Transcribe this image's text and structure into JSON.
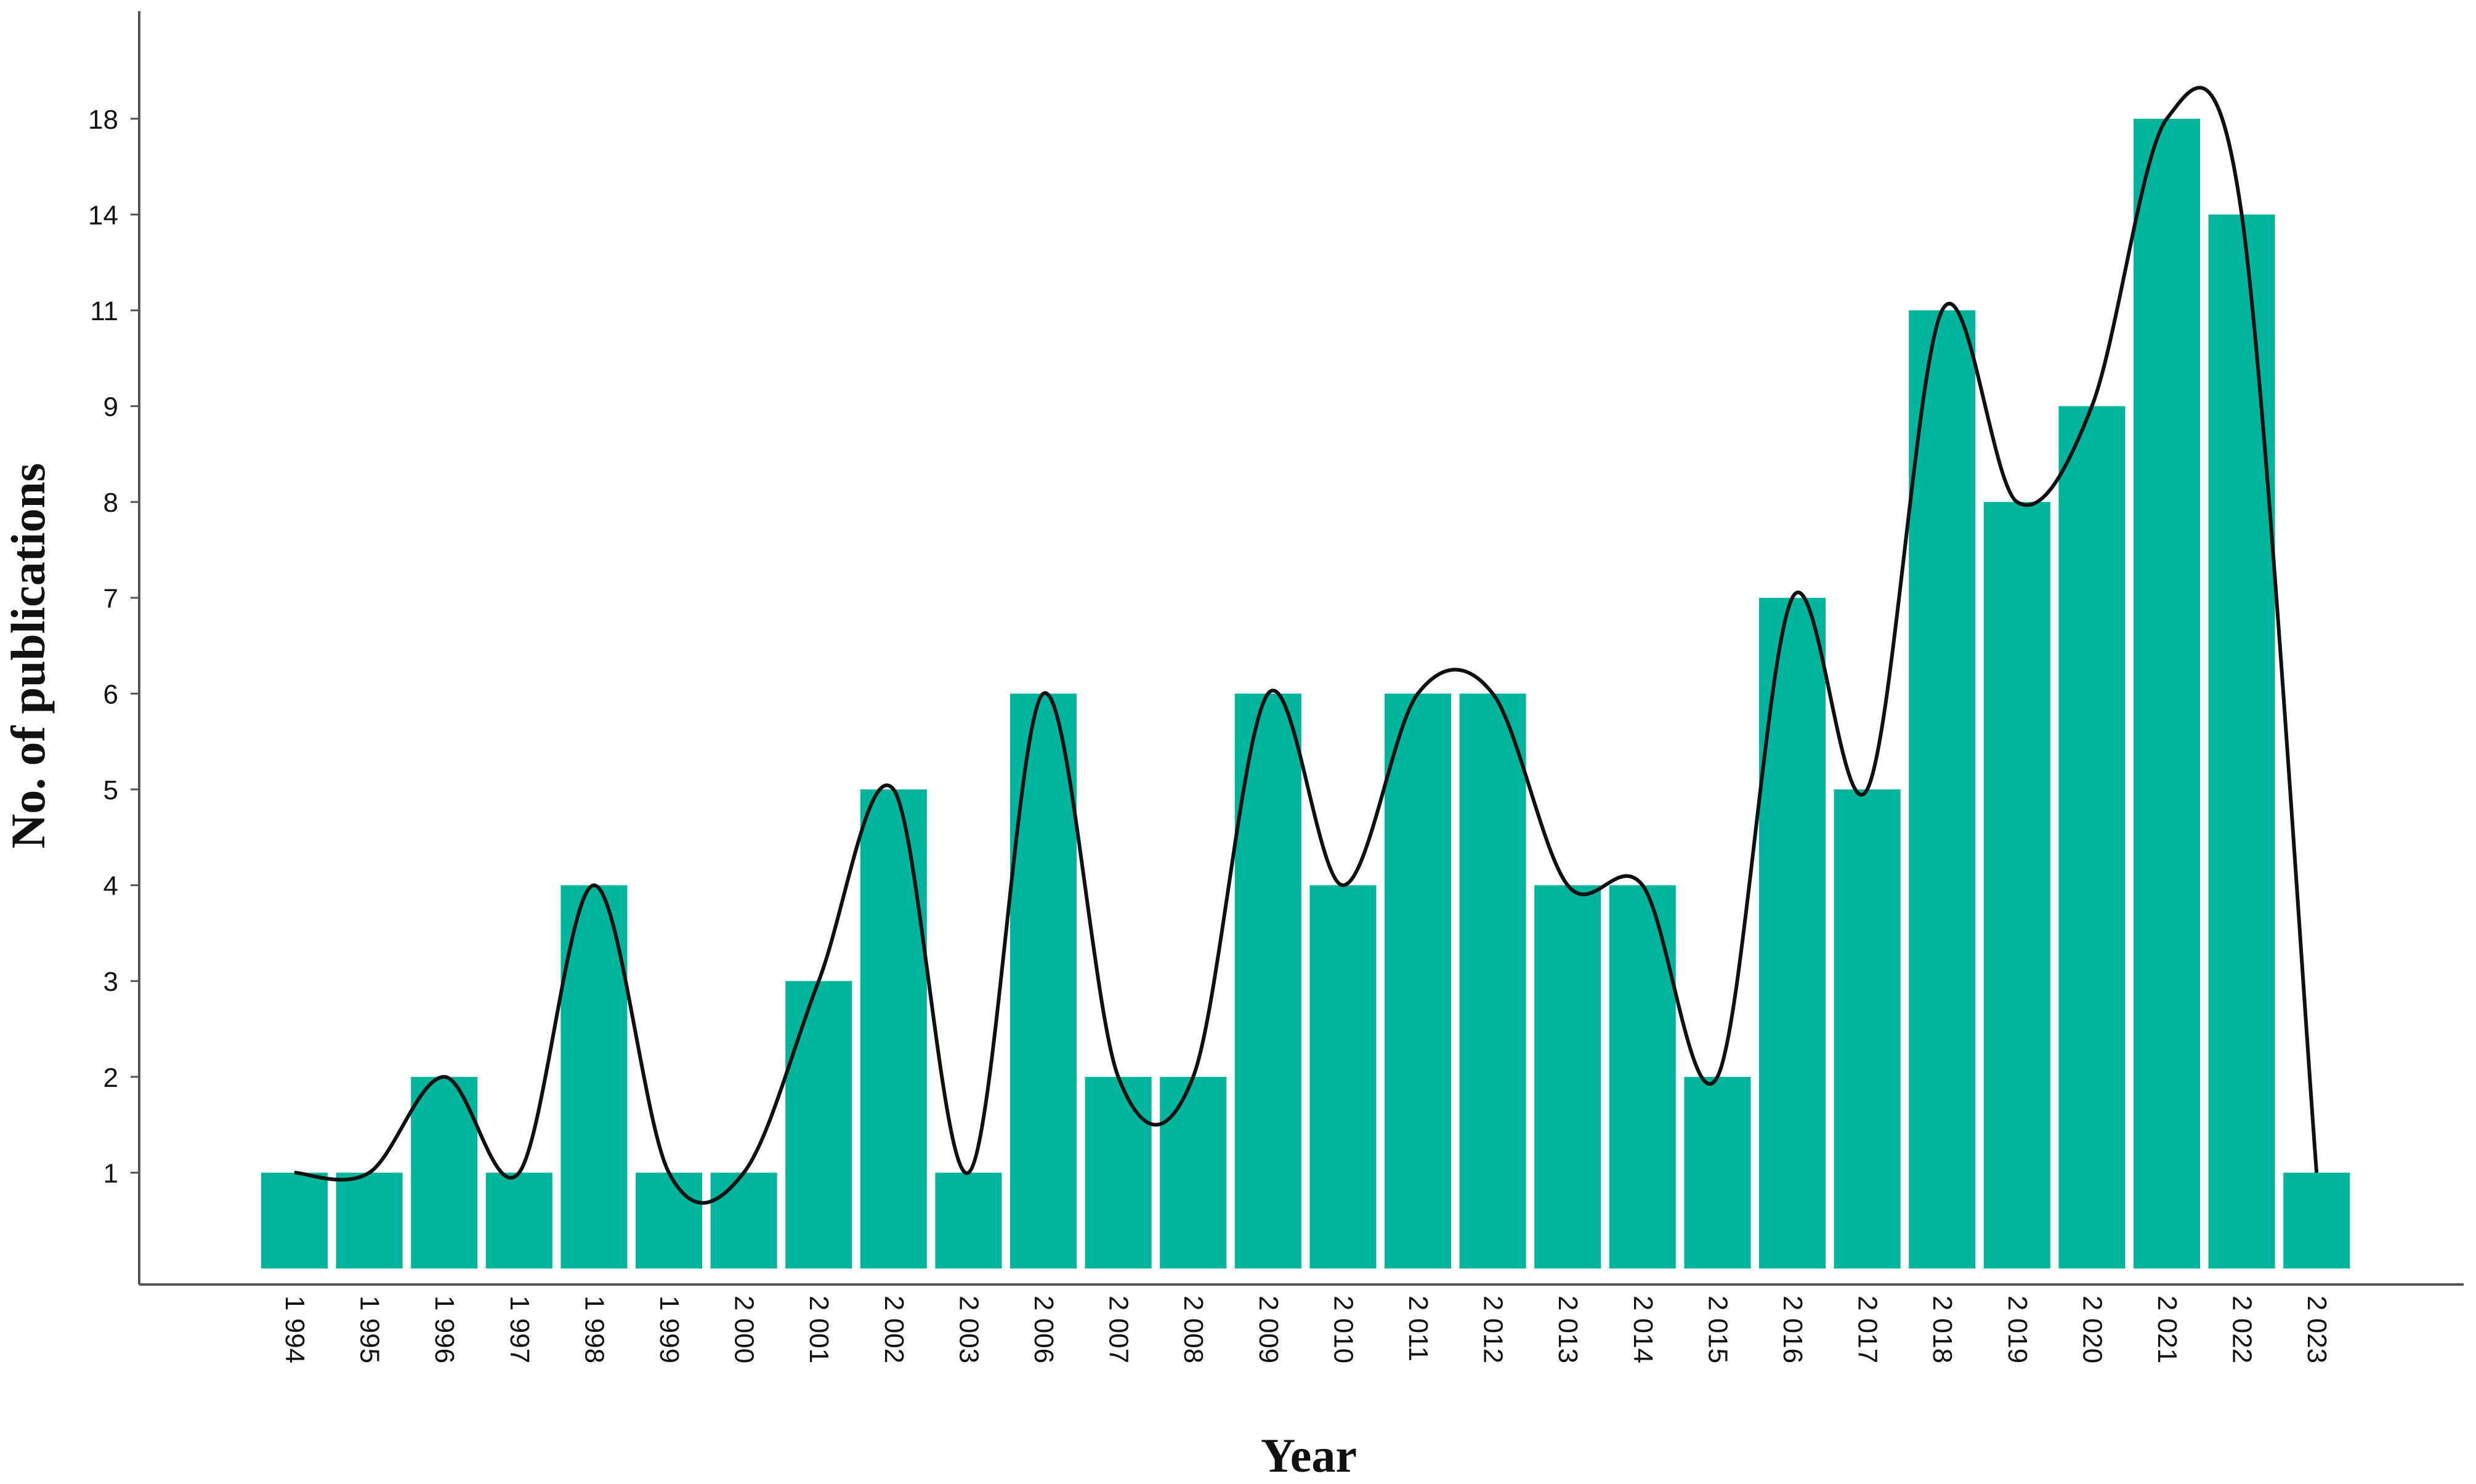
{
  "chart_data": {
    "type": "bar",
    "title": "",
    "xlabel": "Year",
    "ylabel": "No. of publications",
    "categories": [
      "1 994",
      "1 995",
      "1 996",
      "1 997",
      "1 998",
      "1 999",
      "2 000",
      "2 001",
      "2 002",
      "2 003",
      "2 006",
      "2 007",
      "2 008",
      "2 009",
      "2 010",
      "2 011",
      "2 012",
      "2 013",
      "2 014",
      "2 015",
      "2 016",
      "2 017",
      "2 018",
      "2 019",
      "2 020",
      "2 021",
      "2 022",
      "2 023"
    ],
    "values": [
      1,
      1,
      2,
      1,
      4,
      1,
      1,
      3,
      5,
      1,
      6,
      2,
      2,
      6,
      4,
      6,
      6,
      4,
      4,
      2,
      7,
      5,
      11,
      8,
      9,
      18,
      14,
      1
    ],
    "y_ticks": [
      "1",
      "2",
      "3",
      "4",
      "5",
      "6",
      "7",
      "8",
      "9",
      "11",
      "14",
      "18"
    ],
    "y_tick_values": [
      1,
      2,
      3,
      4,
      5,
      6,
      7,
      8,
      9,
      11,
      14,
      18
    ],
    "ylim": [
      0,
      19.2
    ],
    "y_scale": "categorical-rank",
    "grid": false,
    "legend": "none",
    "trend_line": "smoothed curve through bar tops",
    "colors": {
      "bar": "#00b59c",
      "line": "#111111",
      "axis": "#555555"
    }
  }
}
